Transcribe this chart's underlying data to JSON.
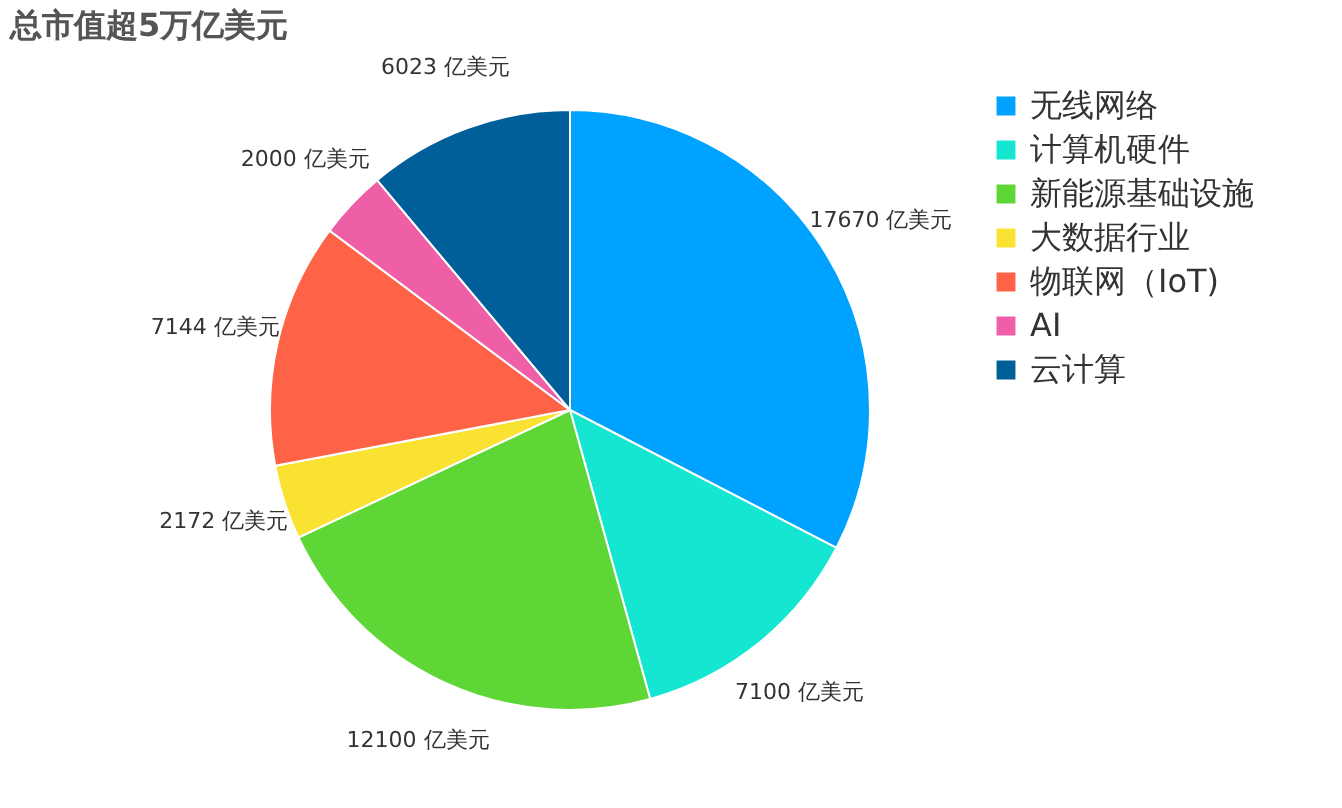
{
  "chart_data": {
    "type": "pie",
    "title": "总市值超5万亿美元",
    "categories": [
      "无线网络",
      "计算机硬件",
      "新能源基础设施",
      "大数据行业",
      "物联网（IoT)",
      "AI",
      "云计算"
    ],
    "values": [
      17670,
      7100,
      12100,
      2172,
      7144,
      2000,
      6023
    ],
    "colors": [
      "#00a2ff",
      "#14e6d2",
      "#5ed636",
      "#fae232",
      "#ff6347",
      "#ee5fa8",
      "#005f99"
    ],
    "value_labels": [
      "17670  亿美元",
      "7100  亿美元",
      "12100  亿美元",
      "2172  亿美元",
      "7144  亿美元",
      "2000  亿美元",
      "6023  亿美元"
    ],
    "legend": "top right"
  }
}
